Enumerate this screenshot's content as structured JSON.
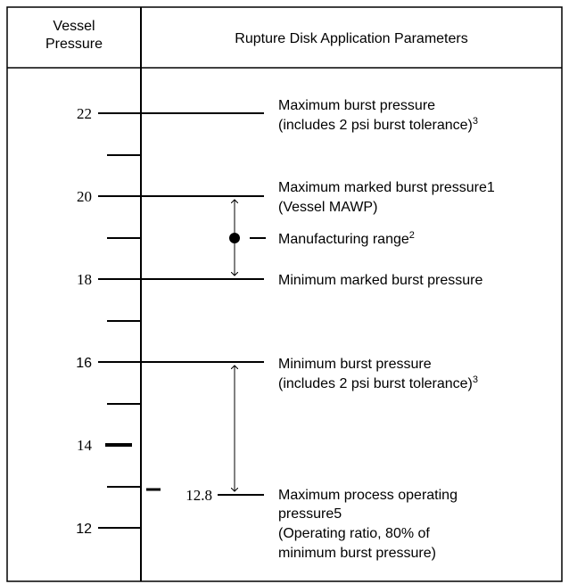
{
  "header": {
    "left": [
      "Vessel",
      "Pressure"
    ],
    "right": "Rupture Disk Application Parameters"
  },
  "scale": {
    "labels": [
      "22",
      "20",
      "18",
      "16",
      "14",
      "12"
    ],
    "marker": "12.8"
  },
  "annotations": [
    {
      "lines": [
        "Maximum burst pressure",
        "(includes 2 psi burst tolerance)"
      ],
      "sup": "3"
    },
    {
      "lines": [
        "Maximum marked burst pressure1",
        "(Vessel MAWP)"
      ]
    },
    {
      "lines": [
        "Manufacturing range"
      ],
      "sup": "2"
    },
    {
      "lines": [
        "Minimum marked burst pressure"
      ]
    },
    {
      "lines": [
        "Minimum burst pressure",
        "(includes 2 psi burst tolerance)"
      ],
      "sup": "3"
    },
    {
      "lines": [
        "Maximum process operating",
        "pressure5",
        "(Operating ratio, 80% of",
        "minimum burst pressure)"
      ]
    }
  ]
}
